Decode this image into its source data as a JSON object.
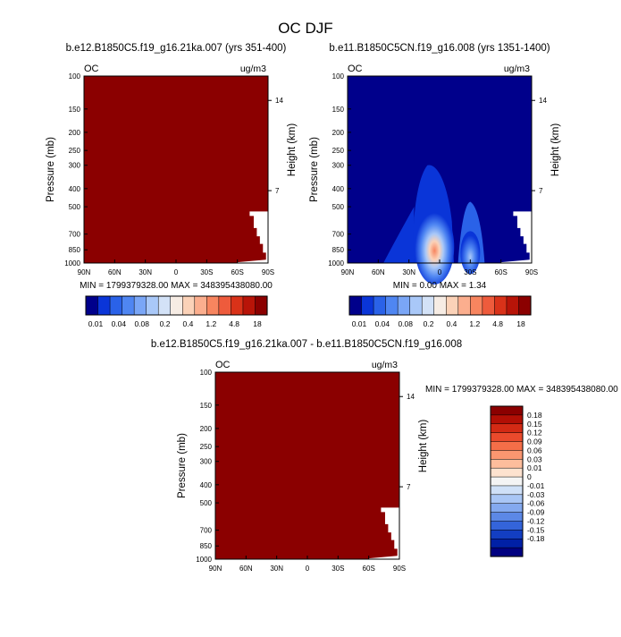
{
  "figure": {
    "title": "OC DJF"
  },
  "chart_data": [
    {
      "type": "heatmap",
      "panel": "top-left",
      "title": "b.e12.B1850C5.f19_g16.21ka.007 (yrs 351-400)",
      "left_label": "OC",
      "right_label": "ug/m3",
      "ylabel": "Pressure (mb)",
      "ylabel_right": "Height (km)",
      "x_ticks": [
        "90N",
        "60N",
        "30N",
        "0",
        "30S",
        "60S",
        "90S"
      ],
      "y_ticks": [
        "100",
        "150",
        "200",
        "250",
        "300",
        "400",
        "500",
        "700",
        "850",
        "1000"
      ],
      "y_ticks_right": [
        "14",
        "7"
      ],
      "ylim": [
        1000,
        100
      ],
      "xlim": [
        90,
        -90
      ],
      "min_max_text": "MIN = 1799379328.00  MAX = 348395438080.00",
      "field": "saturated",
      "colorbar": [
        "0.01",
        "0.04",
        "0.08",
        "0.2",
        "0.4",
        "1.2",
        "4.8",
        "18"
      ]
    },
    {
      "type": "heatmap",
      "panel": "top-right",
      "title": "b.e11.B1850C5CN.f19_g16.008 (yrs 1351-1400)",
      "left_label": "OC",
      "right_label": "ug/m3",
      "ylabel": "Pressure (mb)",
      "ylabel_right": "Height (km)",
      "x_ticks": [
        "90N",
        "60N",
        "30N",
        "0",
        "30S",
        "60S",
        "90S"
      ],
      "y_ticks": [
        "100",
        "150",
        "200",
        "250",
        "300",
        "400",
        "500",
        "700",
        "850",
        "1000"
      ],
      "y_ticks_right": [
        "14",
        "7"
      ],
      "ylim": [
        1000,
        100
      ],
      "xlim": [
        90,
        -90
      ],
      "min_max_text": "MIN =  0.00  MAX =   1.34",
      "field": "plumes",
      "colorbar": [
        "0.01",
        "0.04",
        "0.08",
        "0.2",
        "0.4",
        "1.2",
        "4.8",
        "18"
      ]
    },
    {
      "type": "heatmap",
      "panel": "bottom",
      "title": "b.e12.B1850C5.f19_g16.21ka.007 - b.e11.B1850C5CN.f19_g16.008",
      "left_label": "OC",
      "right_label": "ug/m3",
      "ylabel": "Pressure (mb)",
      "ylabel_right": "Height (km)",
      "x_ticks": [
        "90N",
        "60N",
        "30N",
        "0",
        "30S",
        "60S",
        "90S"
      ],
      "y_ticks": [
        "100",
        "150",
        "200",
        "250",
        "300",
        "400",
        "500",
        "700",
        "850",
        "1000"
      ],
      "y_ticks_right": [
        "14",
        "7"
      ],
      "ylim": [
        1000,
        100
      ],
      "xlim": [
        90,
        -90
      ],
      "min_max_text": "MIN = 1799379328.00  MAX = 348395438080.00",
      "field": "saturated",
      "colorbar": [
        "0.18",
        "0.15",
        "0.12",
        "0.09",
        "0.06",
        "0.03",
        "0.01",
        "0",
        "-0.01",
        "-0.03",
        "-0.06",
        "-0.09",
        "-0.12",
        "-0.15",
        "-0.18"
      ]
    }
  ],
  "colors": {
    "seq_scale": [
      "#00008b",
      "#0a35d8",
      "#2a62e8",
      "#4f86f2",
      "#7aa6f6",
      "#a9c8f8",
      "#d3e2f7",
      "#f6ece4",
      "#fbd2b8",
      "#fbae8e",
      "#f7855f",
      "#ee5b3c",
      "#d93219",
      "#b81408",
      "#8b0000"
    ],
    "diff_scale": [
      "#8b0000",
      "#b20f05",
      "#d32a14",
      "#ea4a2c",
      "#f56e48",
      "#fa9670",
      "#fdbd9c",
      "#fde2cf",
      "#f4f4f4",
      "#cfe0f7",
      "#a9c6f5",
      "#84a9ef",
      "#5c88e6",
      "#3464da",
      "#133ec2",
      "#0020a6",
      "#000080"
    ],
    "saturated": "#8b0000",
    "background": "#ffffff"
  }
}
